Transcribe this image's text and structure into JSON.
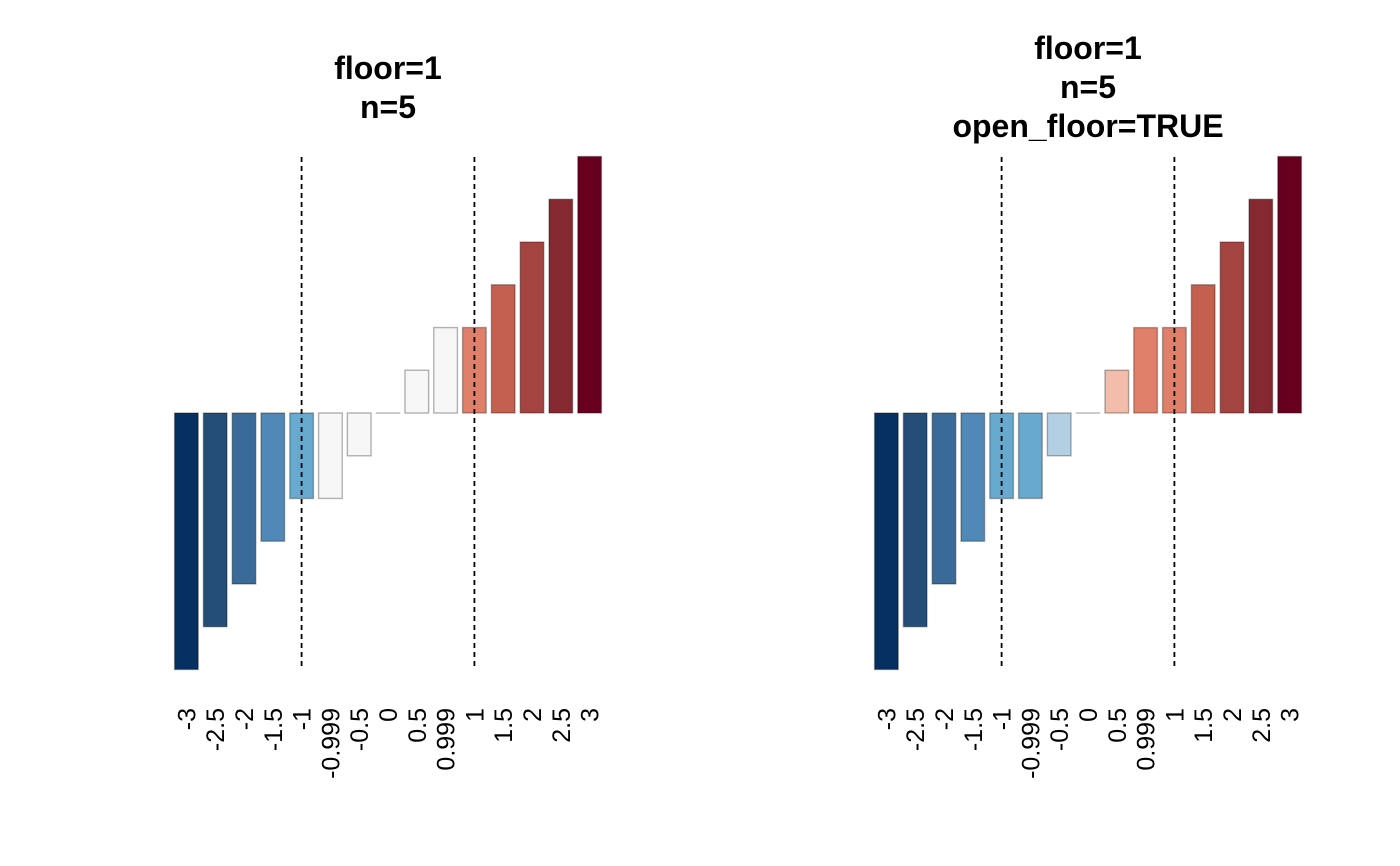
{
  "chart_data": [
    {
      "type": "bar",
      "title": [
        "floor=1",
        "n=5"
      ],
      "categories": [
        "-3",
        "-2.5",
        "-2",
        "-1.5",
        "-1",
        "-0.999",
        "-0.5",
        "0",
        "0.5",
        "0.999",
        "1",
        "1.5",
        "2",
        "2.5",
        "3"
      ],
      "values": [
        -3,
        -2.5,
        -2,
        -1.5,
        -1,
        -0.999,
        -0.5,
        0,
        0.5,
        0.999,
        1,
        1.5,
        2,
        2.5,
        3
      ],
      "colors": [
        "#053061",
        "#244d78",
        "#3a6b98",
        "#5089b8",
        "#67a9cf",
        "#f7f7f7",
        "#f7f7f7",
        "#f7f7f7",
        "#f7f7f7",
        "#f7f7f7",
        "#e07f6a",
        "#c4604f",
        "#a44441",
        "#862830",
        "#67001f"
      ],
      "floor_lines": [
        -1,
        1
      ],
      "ylim": [
        -3,
        3
      ],
      "xlabel": "",
      "ylabel": ""
    },
    {
      "type": "bar",
      "title": [
        "floor=1",
        "n=5",
        "open_floor=TRUE"
      ],
      "categories": [
        "-3",
        "-2.5",
        "-2",
        "-1.5",
        "-1",
        "-0.999",
        "-0.5",
        "0",
        "0.5",
        "0.999",
        "1",
        "1.5",
        "2",
        "2.5",
        "3"
      ],
      "values": [
        -3,
        -2.5,
        -2,
        -1.5,
        -1,
        -0.999,
        -0.5,
        0,
        0.5,
        0.999,
        1,
        1.5,
        2,
        2.5,
        3
      ],
      "colors": [
        "#053061",
        "#244d78",
        "#3a6b98",
        "#5089b8",
        "#67a9cf",
        "#67a9cf",
        "#b3cfe4",
        "#f7f7f7",
        "#f4bcab",
        "#e07f6a",
        "#e07f6a",
        "#c4604f",
        "#a44441",
        "#862830",
        "#67001f"
      ],
      "floor_lines": [
        -1,
        1
      ],
      "ylim": [
        -3,
        3
      ],
      "xlabel": "",
      "ylabel": ""
    }
  ]
}
